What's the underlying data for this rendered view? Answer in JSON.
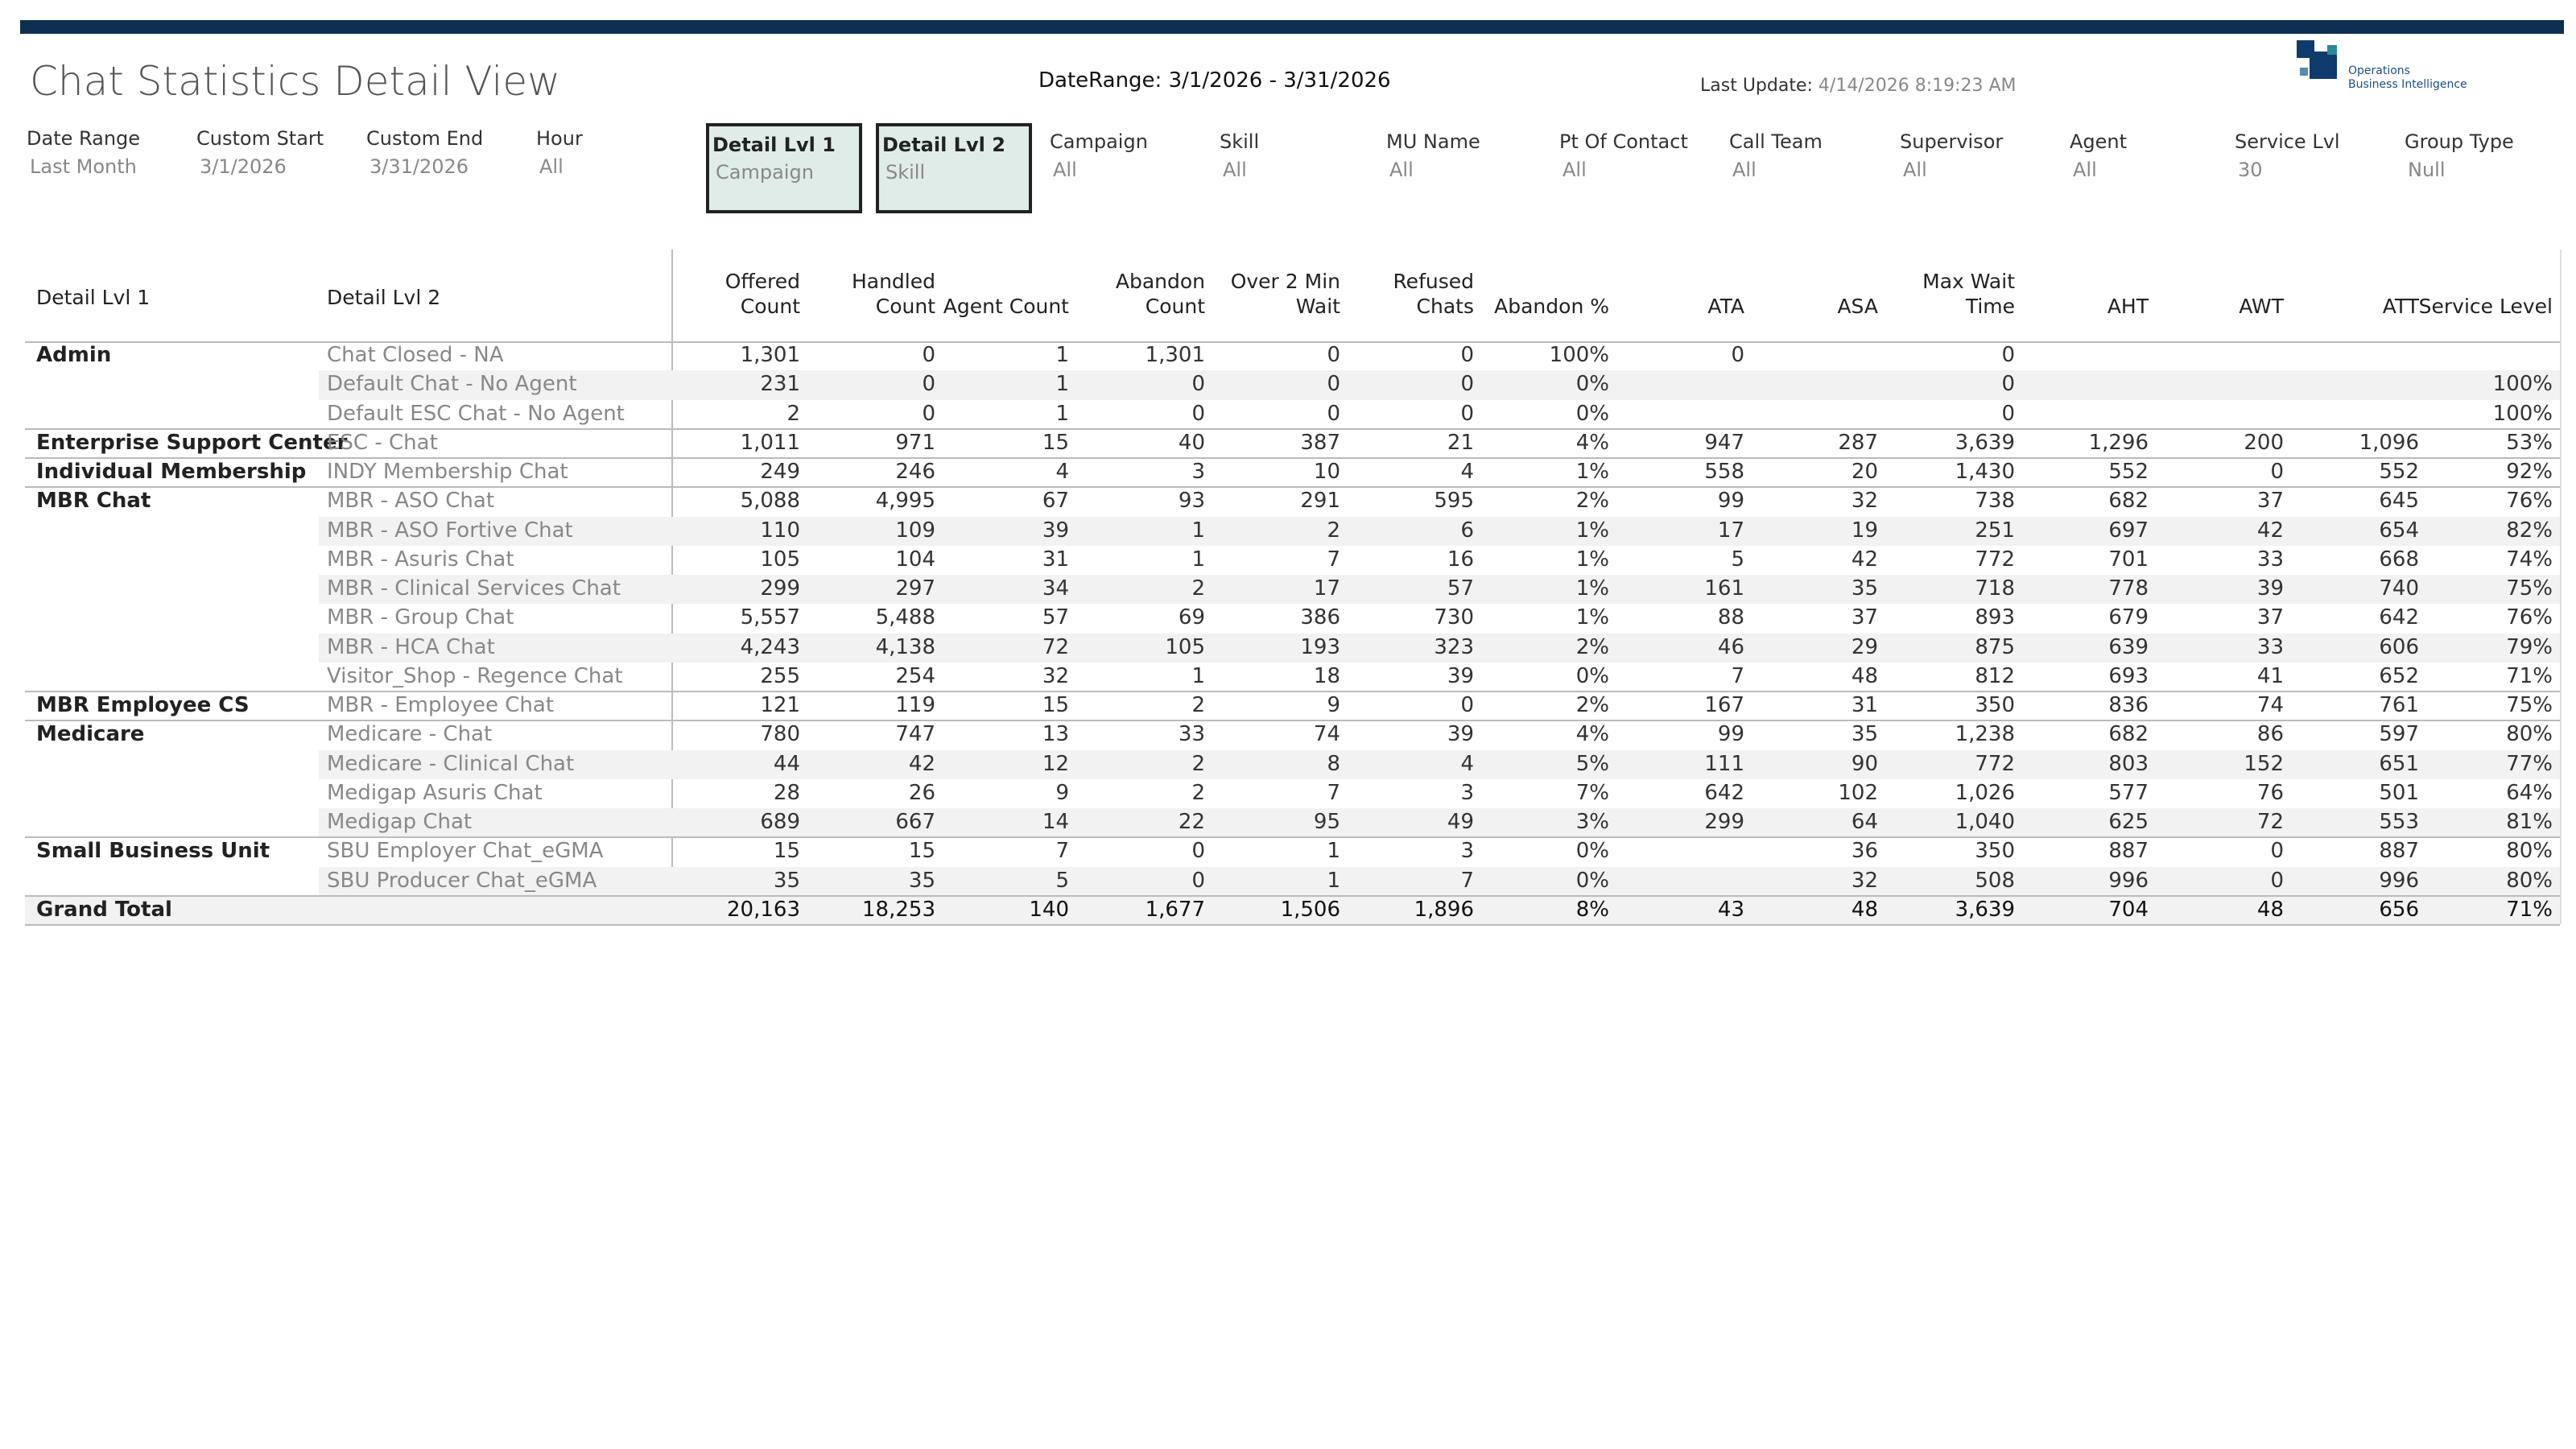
{
  "header": {
    "title": "Chat Statistics Detail View",
    "date_range": "DateRange: 3/1/2026 - 3/31/2026",
    "last_update_label": "Last Update:",
    "last_update_value": "4/14/2026 8:19:23 AM",
    "logo_lines": [
      "Operations",
      "Business Intelligence"
    ]
  },
  "filters": [
    {
      "label": "Date Range",
      "value": "Last Month"
    },
    {
      "label": "Custom Start",
      "value": "3/1/2026"
    },
    {
      "label": "Custom End",
      "value": "3/31/2026"
    },
    {
      "label": "Hour",
      "value": "All"
    },
    {
      "label": "Detail Lvl 1",
      "value": "Campaign"
    },
    {
      "label": "Detail Lvl 2",
      "value": "Skill"
    },
    {
      "label": "Campaign",
      "value": "All"
    },
    {
      "label": "Skill",
      "value": "All"
    },
    {
      "label": "MU Name",
      "value": "All"
    },
    {
      "label": "Pt Of Contact",
      "value": "All"
    },
    {
      "label": "Call Team",
      "value": "All"
    },
    {
      "label": "Supervisor",
      "value": "All"
    },
    {
      "label": "Agent",
      "value": "All"
    },
    {
      "label": "Service Lvl",
      "value": "30"
    },
    {
      "label": "Group Type",
      "value": "Null"
    }
  ],
  "table": {
    "headers": [
      "Detail Lvl 1",
      "Detail Lvl 2",
      "Offered\nCount",
      "Handled\nCount",
      "Agent Count",
      "Abandon\nCount",
      "Over 2 Min\nWait",
      "Refused\nChats",
      "Abandon %",
      "ATA",
      "ASA",
      "Max Wait\nTime",
      "AHT",
      "AWT",
      "ATT",
      "Service Level"
    ],
    "groups": [
      {
        "name": "Admin",
        "rows": [
          {
            "detail": "Chat Closed - NA",
            "values": [
              "1,301",
              "0",
              "1",
              "1,301",
              "0",
              "0",
              "100%",
              "0",
              null,
              "0",
              null,
              null,
              null,
              null
            ]
          },
          {
            "detail": "Default Chat - No Agent",
            "values": [
              "231",
              "0",
              "1",
              "0",
              "0",
              "0",
              "0%",
              null,
              null,
              "0",
              null,
              null,
              null,
              "100%"
            ]
          },
          {
            "detail": "Default ESC Chat - No Agent",
            "values": [
              "2",
              "0",
              "1",
              "0",
              "0",
              "0",
              "0%",
              null,
              null,
              "0",
              null,
              null,
              null,
              "100%"
            ]
          }
        ]
      },
      {
        "name": "Enterprise Support Center",
        "rows": [
          {
            "detail": "ESC - Chat",
            "values": [
              "1,011",
              "971",
              "15",
              "40",
              "387",
              "21",
              "4%",
              "947",
              "287",
              "3,639",
              "1,296",
              "200",
              "1,096",
              "53%"
            ]
          }
        ]
      },
      {
        "name": "Individual Membership",
        "rows": [
          {
            "detail": "INDY Membership Chat",
            "values": [
              "249",
              "246",
              "4",
              "3",
              "10",
              "4",
              "1%",
              "558",
              "20",
              "1,430",
              "552",
              "0",
              "552",
              "92%"
            ]
          }
        ]
      },
      {
        "name": "MBR Chat",
        "rows": [
          {
            "detail": "MBR - ASO Chat",
            "values": [
              "5,088",
              "4,995",
              "67",
              "93",
              "291",
              "595",
              "2%",
              "99",
              "32",
              "738",
              "682",
              "37",
              "645",
              "76%"
            ]
          },
          {
            "detail": "MBR - ASO Fortive Chat",
            "values": [
              "110",
              "109",
              "39",
              "1",
              "2",
              "6",
              "1%",
              "17",
              "19",
              "251",
              "697",
              "42",
              "654",
              "82%"
            ]
          },
          {
            "detail": "MBR - Asuris Chat",
            "values": [
              "105",
              "104",
              "31",
              "1",
              "7",
              "16",
              "1%",
              "5",
              "42",
              "772",
              "701",
              "33",
              "668",
              "74%"
            ]
          },
          {
            "detail": "MBR - Clinical Services Chat",
            "values": [
              "299",
              "297",
              "34",
              "2",
              "17",
              "57",
              "1%",
              "161",
              "35",
              "718",
              "778",
              "39",
              "740",
              "75%"
            ]
          },
          {
            "detail": "MBR - Group Chat",
            "values": [
              "5,557",
              "5,488",
              "57",
              "69",
              "386",
              "730",
              "1%",
              "88",
              "37",
              "893",
              "679",
              "37",
              "642",
              "76%"
            ]
          },
          {
            "detail": "MBR - HCA Chat",
            "values": [
              "4,243",
              "4,138",
              "72",
              "105",
              "193",
              "323",
              "2%",
              "46",
              "29",
              "875",
              "639",
              "33",
              "606",
              "79%"
            ]
          },
          {
            "detail": "Visitor_Shop - Regence Chat",
            "values": [
              "255",
              "254",
              "32",
              "1",
              "18",
              "39",
              "0%",
              "7",
              "48",
              "812",
              "693",
              "41",
              "652",
              "71%"
            ]
          }
        ]
      },
      {
        "name": "MBR Employee CS",
        "rows": [
          {
            "detail": "MBR - Employee Chat",
            "values": [
              "121",
              "119",
              "15",
              "2",
              "9",
              "0",
              "2%",
              "167",
              "31",
              "350",
              "836",
              "74",
              "761",
              "75%"
            ]
          }
        ]
      },
      {
        "name": "Medicare",
        "rows": [
          {
            "detail": "Medicare - Chat",
            "values": [
              "780",
              "747",
              "13",
              "33",
              "74",
              "39",
              "4%",
              "99",
              "35",
              "1,238",
              "682",
              "86",
              "597",
              "80%"
            ]
          },
          {
            "detail": "Medicare - Clinical Chat",
            "values": [
              "44",
              "42",
              "12",
              "2",
              "8",
              "4",
              "5%",
              "111",
              "90",
              "772",
              "803",
              "152",
              "651",
              "77%"
            ]
          },
          {
            "detail": "Medigap Asuris Chat",
            "values": [
              "28",
              "26",
              "9",
              "2",
              "7",
              "3",
              "7%",
              "642",
              "102",
              "1,026",
              "577",
              "76",
              "501",
              "64%"
            ]
          },
          {
            "detail": "Medigap Chat",
            "values": [
              "689",
              "667",
              "14",
              "22",
              "95",
              "49",
              "3%",
              "299",
              "64",
              "1,040",
              "625",
              "72",
              "553",
              "81%"
            ]
          }
        ]
      },
      {
        "name": "Small Business Unit",
        "rows": [
          {
            "detail": "SBU Employer Chat_eGMA",
            "values": [
              "15",
              "15",
              "7",
              "0",
              "1",
              "3",
              "0%",
              null,
              "36",
              "350",
              "887",
              "0",
              "887",
              "80%"
            ]
          },
          {
            "detail": "SBU Producer Chat_eGMA",
            "values": [
              "35",
              "35",
              "5",
              "0",
              "1",
              "7",
              "0%",
              null,
              "32",
              "508",
              "996",
              "0",
              "996",
              "80%"
            ]
          }
        ]
      }
    ],
    "grand_total": {
      "label": "Grand Total",
      "values": [
        "20,163",
        "18,253",
        "140",
        "1,677",
        "1,506",
        "1,896",
        "8%",
        "43",
        "48",
        "3,639",
        "704",
        "48",
        "656",
        "71%"
      ]
    }
  }
}
